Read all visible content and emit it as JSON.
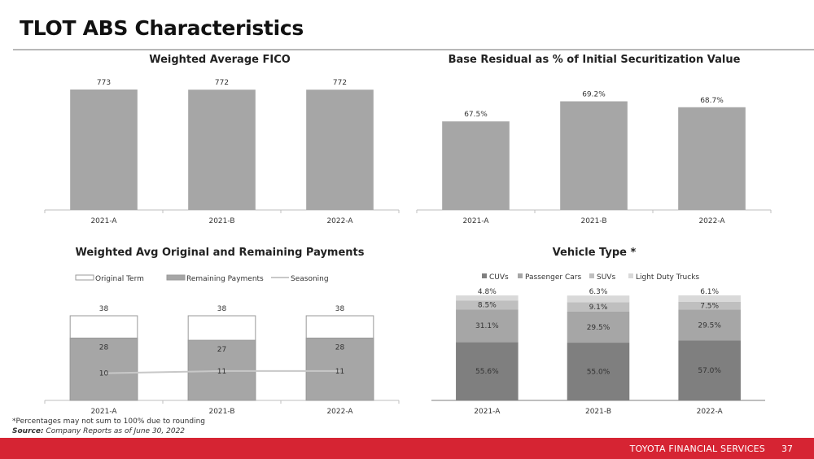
{
  "page": {
    "title": "TLOT ABS Characteristics",
    "footnote": "*Percentages may not sum to 100% due to rounding",
    "source_label": "Source:",
    "source_text": " Company Reports as of June 30, 2022",
    "footer_brand": "TOYOTA FINANCIAL SERVICES",
    "page_number": "37"
  },
  "chart_data": [
    {
      "id": "fico",
      "type": "bar",
      "title": "Weighted Average FICO",
      "categories": [
        "2021-A",
        "2021-B",
        "2022-A"
      ],
      "values": [
        773,
        772,
        772
      ],
      "labels": [
        "773",
        "772",
        "772"
      ],
      "xlabel": "",
      "ylabel": "",
      "grid": false,
      "color": "#a6a6a6"
    },
    {
      "id": "residual",
      "type": "bar",
      "title": "Base Residual as % of Initial Securitization Value",
      "categories": [
        "2021-A",
        "2021-B",
        "2022-A"
      ],
      "values": [
        67.5,
        69.2,
        68.7
      ],
      "labels": [
        "67.5%",
        "69.2%",
        "68.7%"
      ],
      "xlabel": "",
      "ylabel": "",
      "grid": false,
      "color": "#a6a6a6"
    },
    {
      "id": "payments",
      "type": "bar",
      "title": "Weighted Avg Original and Remaining Payments",
      "categories": [
        "2021-A",
        "2021-B",
        "2022-A"
      ],
      "legend_position": "top",
      "series": [
        {
          "name": "Original Term",
          "kind": "bar-outline",
          "values": [
            38,
            38,
            38
          ],
          "color": "#ffffff"
        },
        {
          "name": "Remaining Payments",
          "kind": "bar",
          "values": [
            28,
            27,
            28
          ],
          "color": "#a6a6a6"
        },
        {
          "name": "Seasoning",
          "kind": "line",
          "values": [
            10,
            11,
            11
          ],
          "color": "#c8c8c8"
        }
      ],
      "grid": false
    },
    {
      "id": "vehicle",
      "type": "bar",
      "stacked": true,
      "title": "Vehicle Type *",
      "categories": [
        "2021-A",
        "2021-B",
        "2022-A"
      ],
      "legend_position": "top",
      "series": [
        {
          "name": "CUVs",
          "values": [
            55.6,
            55.0,
            57.0
          ],
          "labels": [
            "55.6%",
            "55.0%",
            "57.0%"
          ],
          "color": "#7f7f7f"
        },
        {
          "name": "Passenger Cars",
          "values": [
            31.1,
            29.5,
            29.5
          ],
          "labels": [
            "31.1%",
            "29.5%",
            "29.5%"
          ],
          "color": "#a6a6a6"
        },
        {
          "name": "SUVs",
          "values": [
            8.5,
            9.1,
            7.5
          ],
          "labels": [
            "8.5%",
            "9.1%",
            "7.5%"
          ],
          "color": "#bfbfbf"
        },
        {
          "name": "Light Duty Trucks",
          "values": [
            4.8,
            6.3,
            6.1
          ],
          "labels": [
            "4.8%",
            "6.3%",
            "6.1%"
          ],
          "color": "#d9d9d9"
        }
      ],
      "grid": false
    }
  ]
}
